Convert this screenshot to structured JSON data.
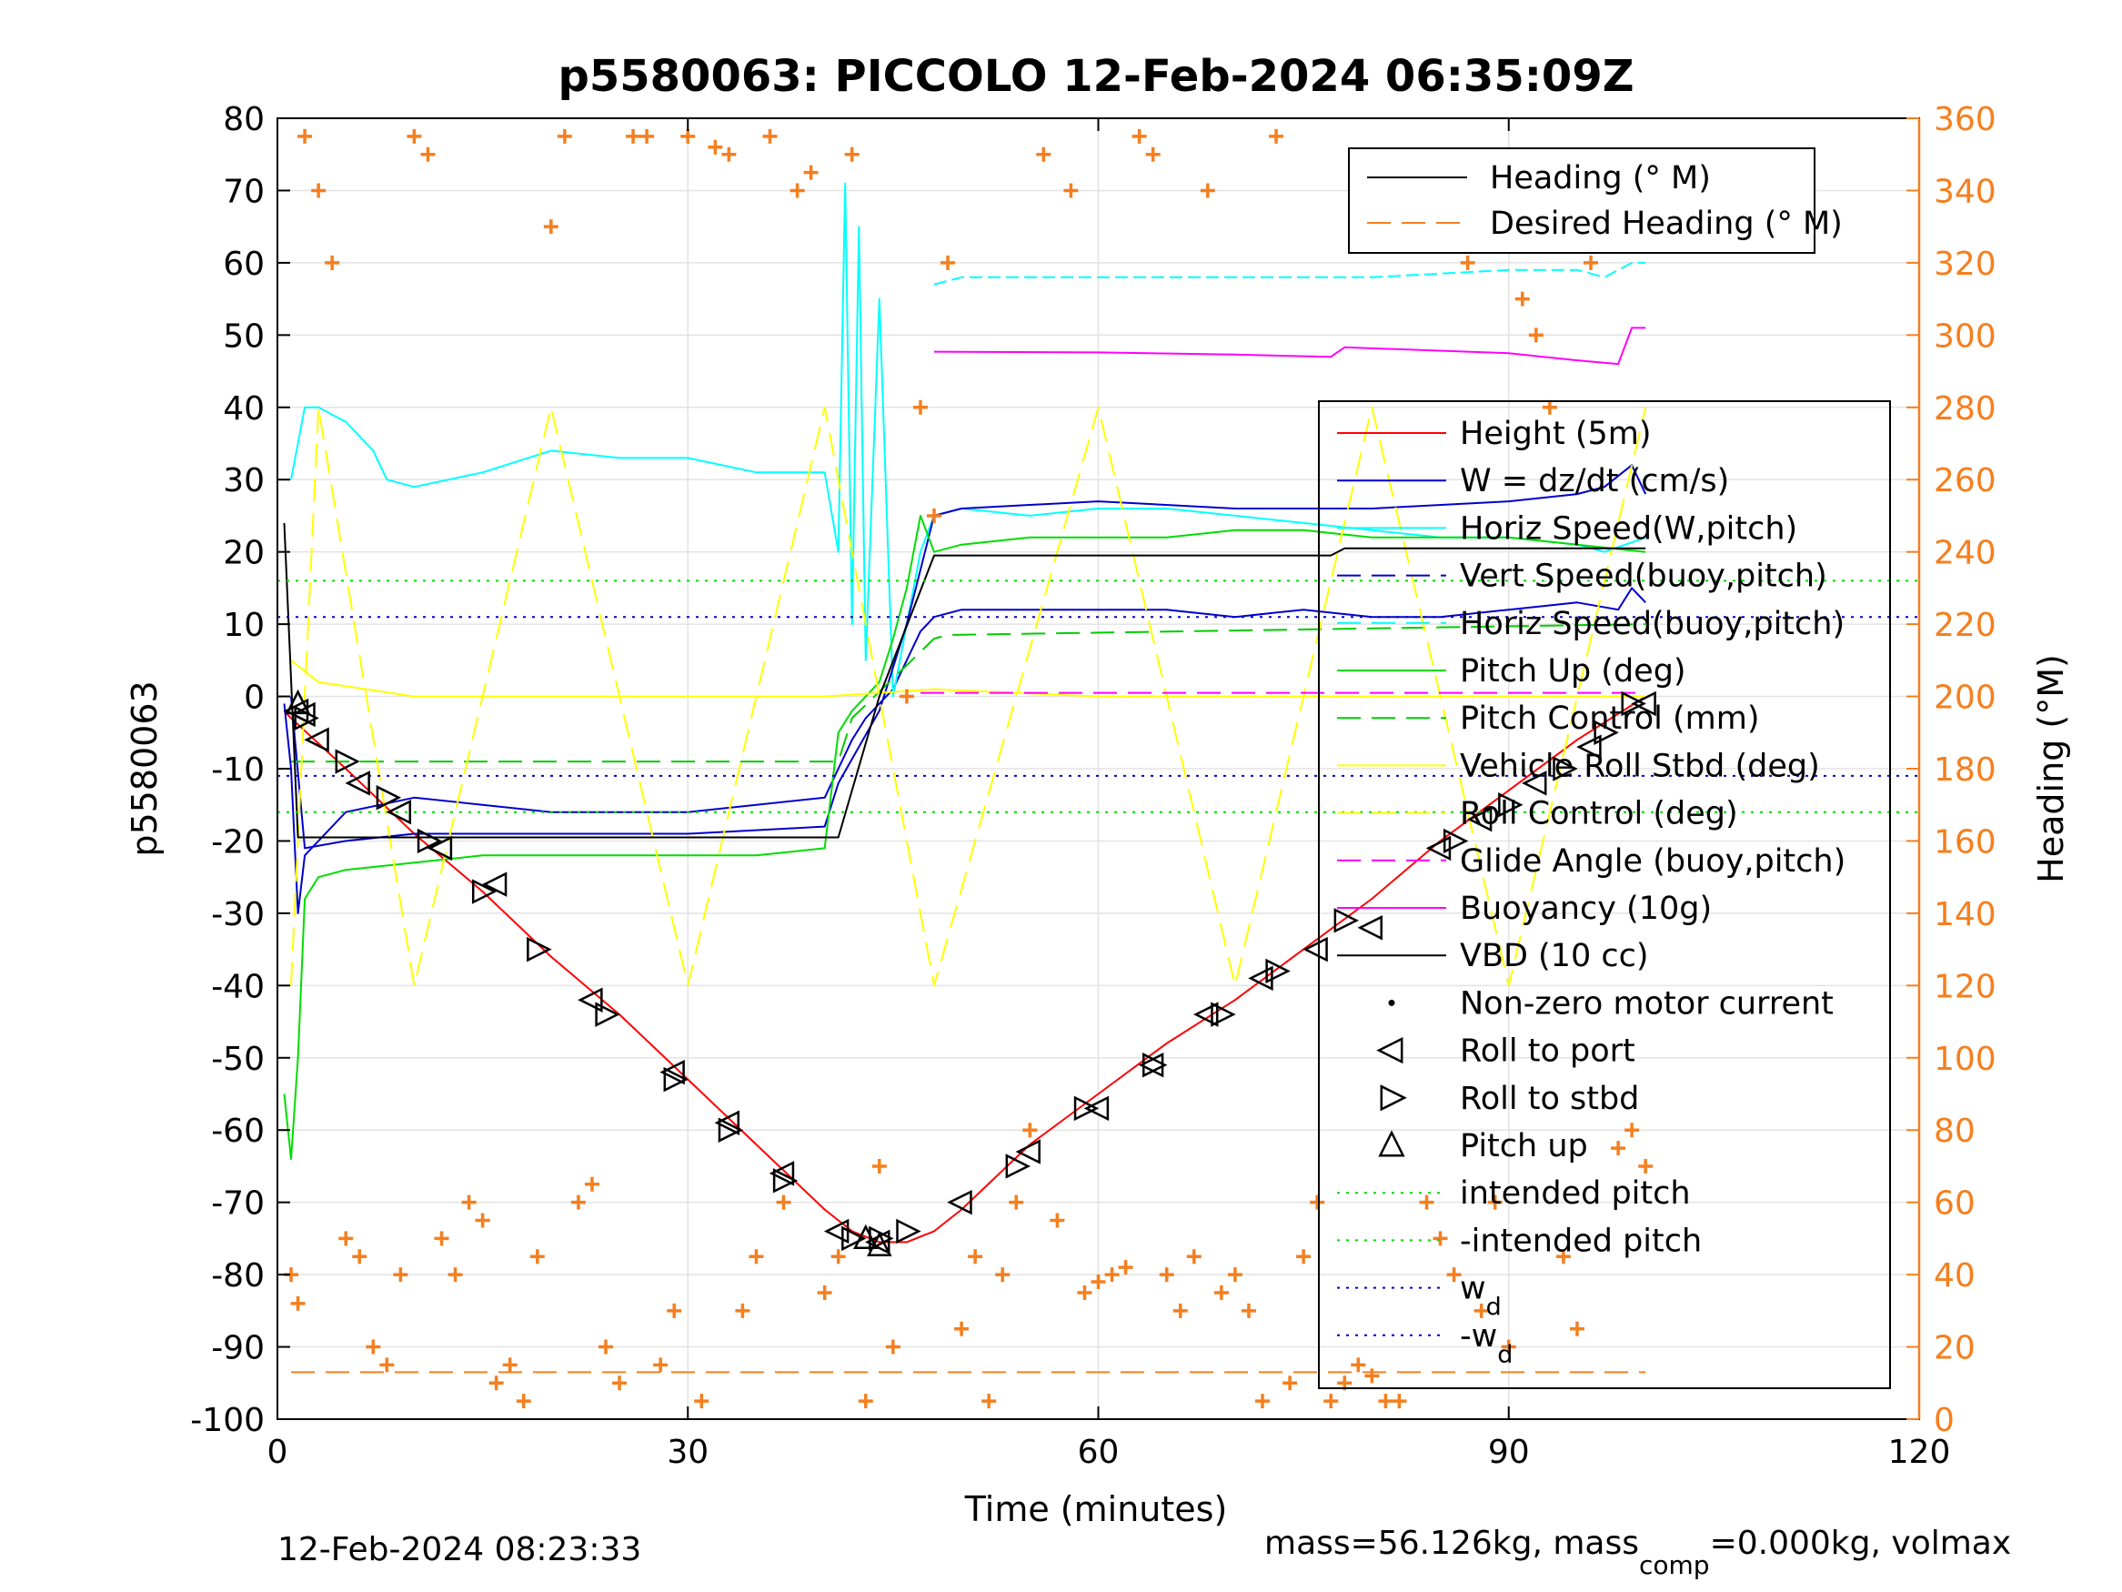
{
  "chart_data": {
    "type": "line",
    "title": "p5580063: PICCOLO 12-Feb-2024 06:35:09Z",
    "xlabel": "Time (minutes)",
    "ylabel": "p5580063",
    "ylabel_right": "Heading (°M)",
    "xlim": [
      0,
      120
    ],
    "ylim": [
      -100,
      80
    ],
    "ylim_right": [
      0,
      360
    ],
    "x_ticks": [
      "0",
      "30",
      "60",
      "90",
      "120"
    ],
    "y_ticks": [
      "80",
      "70",
      "60",
      "50",
      "40",
      "30",
      "20",
      "10",
      "0",
      "-10",
      "-20",
      "-30",
      "-40",
      "-50",
      "-60",
      "-70",
      "-80",
      "-90",
      "-100"
    ],
    "y_right_ticks": [
      "360",
      "340",
      "320",
      "300",
      "280",
      "260",
      "240",
      "220",
      "200",
      "180",
      "160",
      "140",
      "120",
      "100",
      "80",
      "60",
      "40",
      "20",
      "0"
    ],
    "grid": true,
    "footer_left": "12-Feb-2024 08:23:33",
    "footer_right": "mass=56.126kg, mass",
    "footer_right_sub": "comp",
    "footer_right_tail": "=0.000kg, volmax",
    "colors": {
      "heading": "#000000",
      "desired_heading": "#f57f1e",
      "height": "#ff0000",
      "w": "#0000cc",
      "horiz_speed_w": "#00ffff",
      "vert_speed_buoy": "#0000cc",
      "horiz_speed_buoy": "#00ffff",
      "pitch_up": "#00dd00",
      "pitch_control": "#00cc00",
      "vehicle_roll": "#ffff00",
      "roll_control": "#ffff00",
      "glide_angle": "#ff00ff",
      "buoyancy": "#ff00ff",
      "vbd": "#000000",
      "right_axis": "#f57f1e"
    },
    "legend_top": {
      "placement": "top-right",
      "entries": [
        "Heading (° M)",
        "Desired Heading (° M)"
      ]
    },
    "legend_main": {
      "placement": "right",
      "entries": [
        "Height (5m)",
        "W = dz/dt (cm/s)",
        "Horiz Speed(W,pitch)",
        "Vert Speed(buoy,pitch)",
        "Horiz Speed(buoy,pitch)",
        "Pitch Up (deg)",
        "Pitch Control (mm)",
        "Vehicle Roll Stbd (deg)",
        "Roll Control (deg)",
        "Glide Angle (buoy,pitch)",
        "Buoyancy (10g)",
        "VBD (10 cc)",
        "Non-zero motor current",
        "Roll to port",
        "Roll to stbd",
        "Pitch up",
        "intended pitch",
        "-intended pitch",
        "w",
        "-w"
      ],
      "subscripts": {
        "18": "d",
        "19": "d"
      }
    },
    "series": [
      {
        "name": "Height (5m)",
        "x": [
          0.5,
          1,
          5,
          10,
          15,
          20,
          25,
          30,
          35,
          40,
          42,
          44,
          46,
          48,
          50,
          55,
          60,
          65,
          70,
          75,
          80,
          85,
          90,
          95,
          100
        ],
        "y": [
          -2,
          -3,
          -10,
          -19,
          -27,
          -36,
          -44,
          -53,
          -62,
          -71,
          -74,
          -75.5,
          -75.5,
          -74,
          -71,
          -62,
          -55,
          -48,
          -42,
          -35,
          -28,
          -20,
          -13,
          -6,
          0
        ]
      },
      {
        "name": "W = dz/dt (cm/s)",
        "x": [
          0.5,
          1,
          1.5,
          2,
          3,
          5,
          10,
          15,
          20,
          25,
          30,
          35,
          40,
          41,
          42,
          43,
          44,
          45,
          46,
          47,
          48,
          50,
          55,
          60,
          65,
          70,
          75,
          80,
          85,
          90,
          95,
          98,
          99,
          100
        ],
        "y": [
          -1,
          -10,
          -30,
          -22,
          -20,
          -16,
          -14,
          -15,
          -16,
          -16,
          -16,
          -15,
          -14,
          -10,
          -6,
          -3,
          -1,
          1,
          5,
          9,
          11,
          12,
          12,
          12,
          12,
          11,
          12,
          11,
          11,
          12,
          13,
          12,
          15,
          13
        ]
      },
      {
        "name": "Horiz Speed(W,pitch)",
        "x": [
          1,
          2,
          3,
          5,
          7,
          8,
          10,
          15,
          20,
          25,
          30,
          35,
          40,
          41,
          41.5,
          42,
          42.5,
          43,
          44,
          45,
          46,
          47,
          48,
          50,
          55,
          60,
          65,
          70,
          75,
          80,
          85,
          90,
          95,
          97,
          100
        ],
        "y": [
          30,
          40,
          40,
          38,
          34,
          30,
          29,
          31,
          34,
          33,
          33,
          31,
          31,
          20,
          71,
          10,
          65,
          5,
          55,
          0,
          10,
          20,
          25,
          26,
          25,
          26,
          26,
          25,
          24,
          23,
          22,
          22,
          21,
          20,
          22
        ]
      },
      {
        "name": "Vert Speed(buoy,pitch)",
        "x": [
          1,
          2,
          5,
          10,
          20,
          30,
          40,
          41,
          44,
          46,
          48,
          50,
          60,
          70,
          80,
          90,
          95,
          97,
          99,
          100
        ],
        "y": [
          0,
          -21,
          -20,
          -19,
          -19,
          -19,
          -18,
          -12,
          -2,
          10,
          25,
          26,
          27,
          26,
          26,
          27,
          28,
          29,
          32,
          28
        ]
      },
      {
        "name": "Horiz Speed(buoy,pitch)",
        "x": [
          48,
          50,
          60,
          70,
          80,
          90,
          95,
          97,
          99,
          100
        ],
        "y": [
          57,
          58,
          58,
          58,
          58,
          59,
          59,
          58,
          60,
          60
        ]
      },
      {
        "name": "Pitch Up (deg)",
        "x": [
          0.5,
          1,
          1.5,
          2,
          3,
          5,
          10,
          15,
          20,
          25,
          30,
          35,
          40,
          41,
          42,
          43,
          44,
          45,
          46,
          47,
          48,
          50,
          55,
          60,
          65,
          70,
          75,
          80,
          85,
          90,
          95,
          100
        ],
        "y": [
          -55,
          -64,
          -50,
          -28,
          -25,
          -24,
          -23,
          -22,
          -22,
          -22,
          -22,
          -22,
          -21,
          -5,
          -2,
          0,
          2,
          8,
          15,
          25,
          20,
          21,
          22,
          22,
          22,
          23,
          23,
          22,
          22,
          22,
          21,
          20
        ]
      },
      {
        "name": "Pitch Control (mm)",
        "x": [
          1,
          41,
          42,
          48,
          49,
          100
        ],
        "y": [
          -9,
          -9,
          -3,
          8,
          8.5,
          10
        ]
      },
      {
        "name": "Vehicle Roll Stbd (deg)",
        "x": [
          1,
          3,
          10,
          20,
          30,
          40,
          48,
          60,
          70,
          80,
          90,
          100
        ],
        "y": [
          5,
          2,
          0,
          0,
          0,
          0,
          1,
          0,
          0,
          0,
          0,
          0
        ]
      },
      {
        "name": "Roll Control (deg)",
        "x": [
          1,
          3,
          10,
          20,
          30,
          40,
          48,
          60,
          70,
          80,
          90,
          100
        ],
        "y": [
          -40,
          40,
          -40,
          40,
          -40,
          40,
          -40,
          40,
          -40,
          40,
          -40,
          40
        ]
      },
      {
        "name": "Glide Angle (buoy,pitch)",
        "x": [
          47,
          100
        ],
        "y": [
          0.5,
          0.5
        ]
      },
      {
        "name": "Buoyancy (10g)",
        "x": [
          48,
          60,
          70,
          77,
          78,
          90,
          95,
          98,
          99,
          100
        ],
        "y": [
          47.7,
          47.6,
          47.3,
          47,
          48.3,
          47.5,
          46.5,
          46,
          51,
          51
        ]
      },
      {
        "name": "VBD (10 cc)",
        "x": [
          0.5,
          1.5,
          2,
          41,
          44,
          48,
          77,
          78,
          100
        ],
        "y": [
          24,
          -19.5,
          -19.5,
          -19.5,
          0,
          19.5,
          19.5,
          20.5,
          20.5
        ]
      },
      {
        "name": "intended pitch",
        "x": [
          0,
          120
        ],
        "y": [
          16,
          16
        ]
      },
      {
        "name": "-intended pitch",
        "x": [
          0,
          120
        ],
        "y": [
          -16,
          -16
        ]
      },
      {
        "name": "w",
        "x": [
          0,
          120
        ],
        "y": [
          11,
          11
        ]
      },
      {
        "name": "-w",
        "x": [
          0,
          120
        ],
        "y": [
          -11,
          -11
        ]
      },
      {
        "name": "Desired Heading (° M)",
        "x": [
          1,
          100
        ],
        "y": [
          13,
          13
        ]
      }
    ],
    "markers": [
      {
        "name": "Roll to port",
        "x": [
          1.5,
          2,
          3,
          6,
          9,
          12,
          16,
          23,
          29,
          33,
          37,
          41,
          44,
          50,
          55,
          60,
          64,
          68,
          72,
          76,
          80,
          85,
          88,
          92,
          96,
          100
        ],
        "y": [
          -2,
          -2.5,
          -6,
          -12,
          -16,
          -21,
          -26,
          -42,
          -52,
          -59,
          -66,
          -74,
          -75.5,
          -70,
          -63,
          -57,
          -51,
          -44,
          -39,
          -35,
          -32,
          -21,
          -17,
          -12,
          -7,
          -1
        ]
      },
      {
        "name": "Roll to stbd",
        "x": [
          2,
          5,
          8,
          11,
          15,
          19,
          24,
          29,
          33,
          37,
          42,
          44,
          46,
          54,
          59,
          64,
          69,
          73,
          78,
          86,
          90,
          94,
          97,
          99
        ],
        "y": [
          -3,
          -9,
          -14,
          -20,
          -27,
          -35,
          -44,
          -53,
          -60,
          -67,
          -75,
          -75,
          -74,
          -65,
          -57,
          -51,
          -44,
          -38,
          -31,
          -20,
          -15,
          -10,
          -5,
          -1
        ]
      },
      {
        "name": "Pitch up",
        "x": [
          1.5,
          43,
          44
        ],
        "y": [
          -1,
          -75,
          -76
        ]
      }
    ],
    "heading_points": {
      "name": "Heading (° M)",
      "x": [
        1,
        1.5,
        2,
        3,
        4,
        5,
        6,
        7,
        8,
        9,
        10,
        11,
        12,
        13,
        14,
        15,
        16,
        17,
        18,
        19,
        20,
        21,
        22,
        23,
        24,
        25,
        26,
        27,
        28,
        29,
        30,
        31,
        32,
        33,
        34,
        35,
        36,
        37,
        38,
        39,
        40,
        41,
        42,
        43,
        44,
        45,
        46,
        47,
        48,
        49,
        50,
        51,
        52,
        53,
        54,
        55,
        56,
        57,
        58,
        59,
        60,
        61,
        62,
        63,
        64,
        65,
        66,
        67,
        68,
        69,
        70,
        71,
        72,
        73,
        74,
        75,
        76,
        77,
        78,
        79,
        80,
        81,
        82,
        83,
        84,
        85,
        86,
        87,
        88,
        89,
        90,
        91,
        92,
        93,
        94,
        95,
        96,
        97,
        98,
        99,
        100
      ],
      "y": [
        40,
        32,
        355,
        340,
        320,
        50,
        45,
        20,
        15,
        40,
        355,
        350,
        50,
        40,
        60,
        55,
        10,
        15,
        5,
        45,
        330,
        355,
        60,
        65,
        20,
        10,
        355,
        355,
        15,
        30,
        355,
        5,
        352,
        350,
        30,
        45,
        355,
        60,
        340,
        345,
        35,
        45,
        350,
        5,
        70,
        20,
        200,
        280,
        250,
        320,
        25,
        45,
        5,
        40,
        60,
        80,
        350,
        55,
        340,
        35,
        38,
        40,
        42,
        355,
        350,
        40,
        30,
        45,
        340,
        35,
        40,
        30,
        5,
        355,
        10,
        45,
        60,
        5,
        10,
        15,
        12,
        5,
        5,
        345,
        60,
        50,
        40,
        320,
        30,
        60,
        20,
        310,
        300,
        280,
        45,
        25,
        320,
        330,
        75,
        80,
        70
      ]
    }
  }
}
